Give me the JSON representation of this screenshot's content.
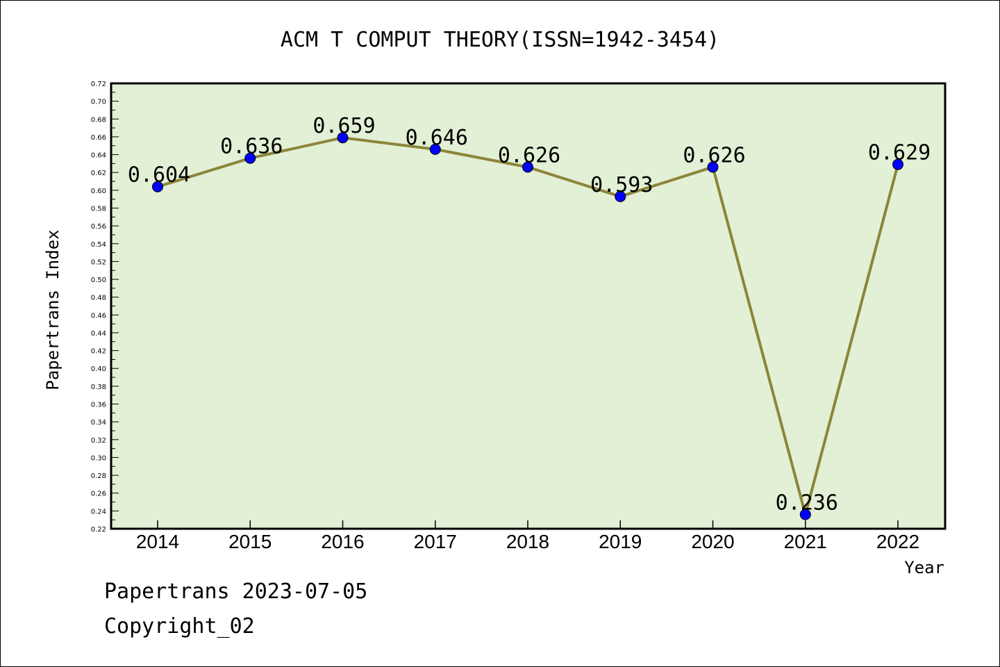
{
  "chart_data": {
    "type": "line",
    "title": "ACM T COMPUT THEORY(ISSN=1942-3454)",
    "xlabel": "Year",
    "ylabel": "Papertrans Index",
    "categories": [
      "2014",
      "2015",
      "2016",
      "2017",
      "2018",
      "2019",
      "2020",
      "2021",
      "2022"
    ],
    "series": [
      {
        "values": [
          0.604,
          0.636,
          0.659,
          0.646,
          0.626,
          0.593,
          0.626,
          0.236,
          0.629
        ],
        "labels": [
          "0.604",
          "0.636",
          "0.659",
          "0.646",
          "0.626",
          "0.593",
          "0.626",
          "0.236",
          "0.629"
        ]
      }
    ],
    "ylim": [
      0.22,
      0.72
    ],
    "ytick_step": 0.02,
    "yticks": [
      "0.22",
      "0.24",
      "0.26",
      "0.28",
      "0.30",
      "0.32",
      "0.34",
      "0.36",
      "0.38",
      "0.40",
      "0.42",
      "0.44",
      "0.46",
      "0.48",
      "0.50",
      "0.52",
      "0.54",
      "0.56",
      "0.58",
      "0.60",
      "0.62",
      "0.64",
      "0.66",
      "0.68",
      "0.70",
      "0.72"
    ],
    "grid": false,
    "legend": "none",
    "colors": {
      "plot_background": "#e2f0d5",
      "line": "#8c853a",
      "marker": "#0000ff",
      "frame": "#000000"
    }
  },
  "footer": {
    "source_line": "Papertrans 2023-07-05",
    "copyright_line": "Copyright_02"
  }
}
